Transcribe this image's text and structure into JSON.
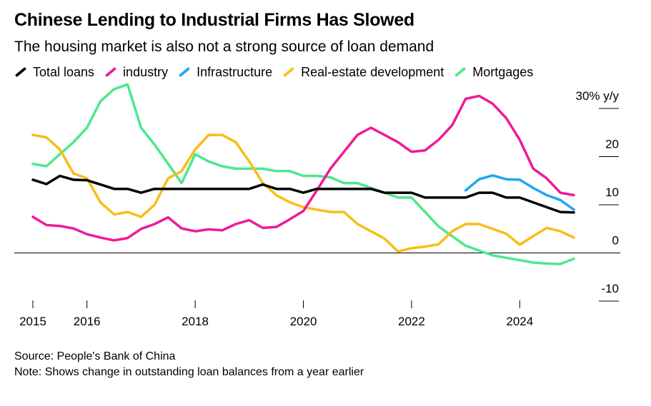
{
  "chart_data": {
    "type": "line",
    "title": "Chinese Lending to Industrial Firms Has Slowed",
    "subtitle": "The housing market is also not a strong source of loan demand",
    "ylabel": "30% y/y",
    "ylim": [
      -10,
      30
    ],
    "yticks": [
      {
        "value": 30,
        "label": "30% y/y"
      },
      {
        "value": 20,
        "label": "20"
      },
      {
        "value": 10,
        "label": "10"
      },
      {
        "value": 0,
        "label": "0"
      },
      {
        "value": -10,
        "label": "-10"
      }
    ],
    "xlim": [
      2015.0,
      2025.0
    ],
    "xticks": [
      {
        "value": 2015.0,
        "label": "2015"
      },
      {
        "value": 2016.0,
        "label": "2016"
      },
      {
        "value": 2018.0,
        "label": "2018"
      },
      {
        "value": 2020.0,
        "label": "2020"
      },
      {
        "value": 2022.0,
        "label": "2022"
      },
      {
        "value": 2024.0,
        "label": "2024"
      }
    ],
    "legend_position": "top",
    "grid": false,
    "series": [
      {
        "name": "Total loans",
        "color": "#000000",
        "x": [
          2015.0,
          2015.25,
          2015.5,
          2015.75,
          2016.0,
          2016.25,
          2016.5,
          2016.75,
          2017.0,
          2017.25,
          2017.5,
          2017.75,
          2018.0,
          2018.25,
          2018.5,
          2018.75,
          2019.0,
          2019.25,
          2019.5,
          2019.75,
          2020.0,
          2020.25,
          2020.5,
          2020.75,
          2021.0,
          2021.25,
          2021.5,
          2021.75,
          2022.0,
          2022.25,
          2022.5,
          2022.75,
          2023.0,
          2023.25,
          2023.5,
          2023.75,
          2024.0,
          2024.25,
          2024.5,
          2024.75,
          2025.0
        ],
        "y": [
          15.2,
          14.3,
          16.0,
          15.2,
          15.1,
          14.2,
          13.3,
          13.3,
          12.5,
          13.3,
          13.3,
          13.3,
          13.3,
          13.3,
          13.3,
          13.3,
          13.3,
          14.2,
          13.3,
          13.3,
          12.5,
          13.3,
          13.3,
          13.3,
          13.3,
          13.3,
          12.5,
          12.5,
          12.5,
          11.5,
          11.5,
          11.5,
          11.5,
          12.5,
          12.5,
          11.5,
          11.5,
          10.5,
          9.5,
          8.5,
          8.4
        ]
      },
      {
        "name": "industry",
        "color": "#f0199b",
        "x": [
          2015.0,
          2015.25,
          2015.5,
          2015.75,
          2016.0,
          2016.25,
          2016.5,
          2016.75,
          2017.0,
          2017.25,
          2017.5,
          2017.75,
          2018.0,
          2018.25,
          2018.5,
          2018.75,
          2019.0,
          2019.25,
          2019.5,
          2019.75,
          2020.0,
          2020.25,
          2020.5,
          2020.75,
          2021.0,
          2021.25,
          2021.5,
          2021.75,
          2022.0,
          2022.25,
          2022.5,
          2022.75,
          2023.0,
          2023.25,
          2023.5,
          2023.75,
          2024.0,
          2024.25,
          2024.5,
          2024.75,
          2025.0
        ],
        "y": [
          7.5,
          5.8,
          5.6,
          5.1,
          3.9,
          3.2,
          2.6,
          3.1,
          5.0,
          6.0,
          7.4,
          5.1,
          4.5,
          4.9,
          4.7,
          6.0,
          6.8,
          5.2,
          5.4,
          7.0,
          8.7,
          13.0,
          17.5,
          21.0,
          24.5,
          26.0,
          24.5,
          23.0,
          21.0,
          21.3,
          23.5,
          26.5,
          32.0,
          32.6,
          31.0,
          28.0,
          23.5,
          17.5,
          15.5,
          12.5,
          12.0
        ]
      },
      {
        "name": "Infrastructure",
        "color": "#1fa9f0",
        "x": [
          2023.0,
          2023.25,
          2023.5,
          2023.75,
          2024.0,
          2024.25,
          2024.5,
          2024.75,
          2025.0
        ],
        "y": [
          13.0,
          15.3,
          16.1,
          15.3,
          15.2,
          13.5,
          12.0,
          11.0,
          9.0
        ]
      },
      {
        "name": "Real-estate development",
        "color": "#f7be16",
        "x": [
          2015.0,
          2015.25,
          2015.5,
          2015.75,
          2016.0,
          2016.25,
          2016.5,
          2016.75,
          2017.0,
          2017.25,
          2017.5,
          2017.75,
          2018.0,
          2018.25,
          2018.5,
          2018.75,
          2019.0,
          2019.25,
          2019.5,
          2019.75,
          2020.0,
          2020.25,
          2020.5,
          2020.75,
          2021.0,
          2021.25,
          2021.5,
          2021.75,
          2022.0,
          2022.25,
          2022.5,
          2022.75,
          2023.0,
          2023.25,
          2023.5,
          2023.75,
          2024.0,
          2024.25,
          2024.5,
          2024.75,
          2025.0
        ],
        "y": [
          24.5,
          24.0,
          21.5,
          16.5,
          15.5,
          10.5,
          8.0,
          8.5,
          7.5,
          10.0,
          15.5,
          17.0,
          21.5,
          24.5,
          24.5,
          23.0,
          19.0,
          14.5,
          12.0,
          10.5,
          9.5,
          9.0,
          8.5,
          8.5,
          6.0,
          4.5,
          3.0,
          0.3,
          1.0,
          1.3,
          1.8,
          4.5,
          6.0,
          6.0,
          5.0,
          4.0,
          1.7,
          3.5,
          5.2,
          4.5,
          3.2
        ]
      },
      {
        "name": "Mortgages",
        "color": "#4ce88f",
        "x": [
          2015.0,
          2015.25,
          2015.5,
          2015.75,
          2016.0,
          2016.25,
          2016.5,
          2016.75,
          2017.0,
          2017.25,
          2017.5,
          2017.75,
          2018.0,
          2018.25,
          2018.5,
          2018.75,
          2019.0,
          2019.25,
          2019.5,
          2019.75,
          2020.0,
          2020.25,
          2020.5,
          2020.75,
          2021.0,
          2021.25,
          2021.5,
          2021.75,
          2022.0,
          2022.25,
          2022.5,
          2022.75,
          2023.0,
          2023.25,
          2023.5,
          2023.75,
          2024.0,
          2024.25,
          2024.5,
          2024.75,
          2025.0
        ],
        "y": [
          18.5,
          18.0,
          20.5,
          23.0,
          26.0,
          31.5,
          34.0,
          35.0,
          26.0,
          22.5,
          18.5,
          14.5,
          20.5,
          19.0,
          18.0,
          17.5,
          17.5,
          17.5,
          17.0,
          17.0,
          16.0,
          16.0,
          15.7,
          14.5,
          14.5,
          13.5,
          12.5,
          11.5,
          11.5,
          8.5,
          5.5,
          3.5,
          1.5,
          0.5,
          -0.5,
          -1.0,
          -1.5,
          -2.0,
          -2.2,
          -2.3,
          -1.2
        ]
      }
    ]
  },
  "source": "Source: People's Bank of China",
  "note": "Note: Shows change in outstanding loan balances from a year earlier"
}
